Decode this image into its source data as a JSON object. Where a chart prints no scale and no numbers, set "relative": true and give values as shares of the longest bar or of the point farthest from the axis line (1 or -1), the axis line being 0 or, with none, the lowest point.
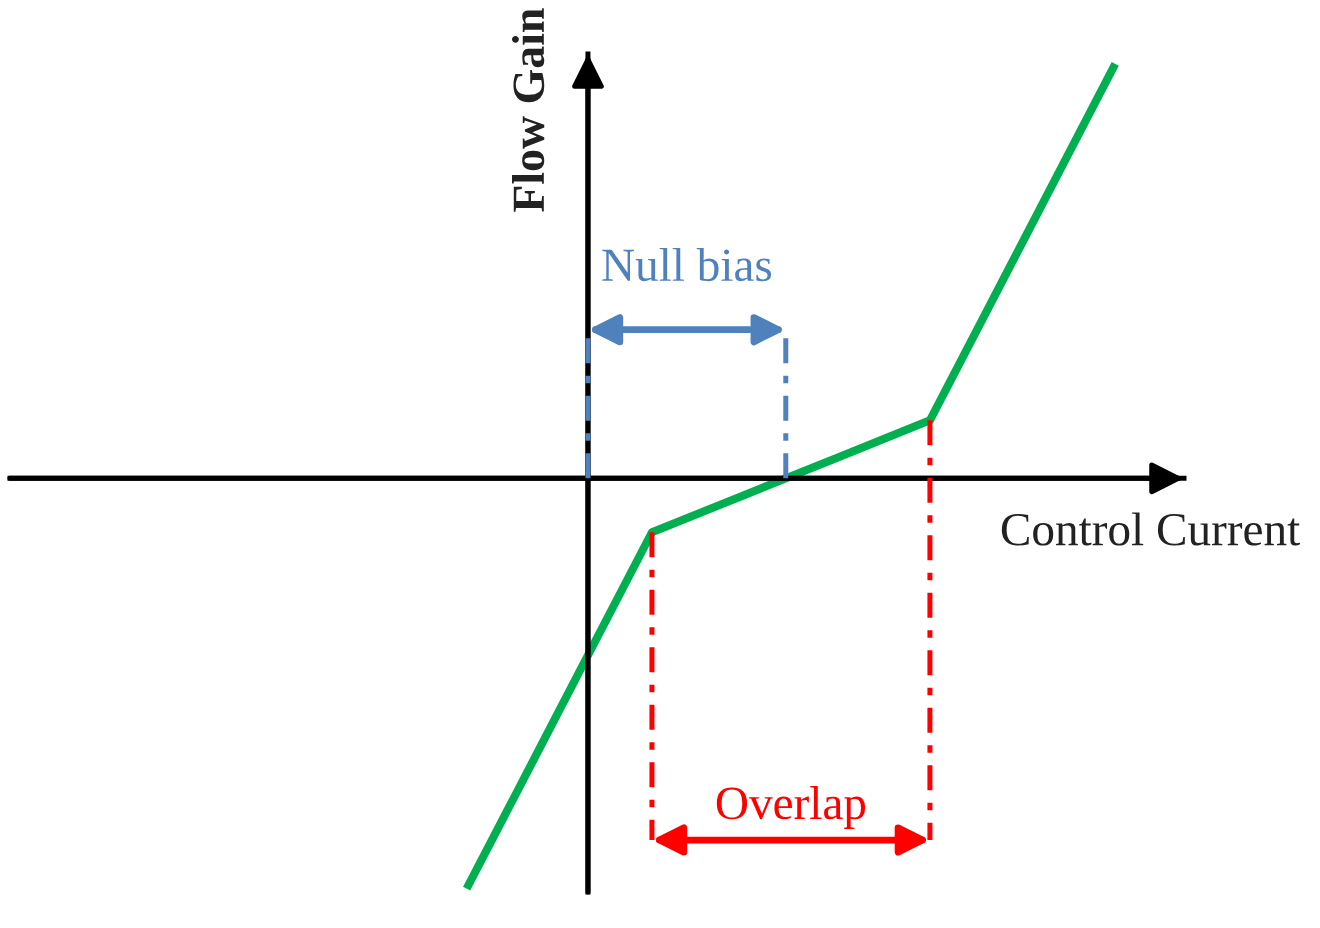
{
  "chart_data": {
    "type": "line",
    "relative": true,
    "xlabel": "Control Current",
    "ylabel": "Flow Gain",
    "categories": [
      null,
      null,
      null,
      null,
      null,
      null,
      null,
      null
    ],
    "series": [
      {
        "color": "#00b050",
        "values": [
          -0.99,
          -0.56,
          -0.13,
          -0.04,
          0.05,
          0.14,
          0.57,
          1.0
        ]
      }
    ],
    "annotations": [
      "Null bias",
      "Overlap"
    ]
  }
}
